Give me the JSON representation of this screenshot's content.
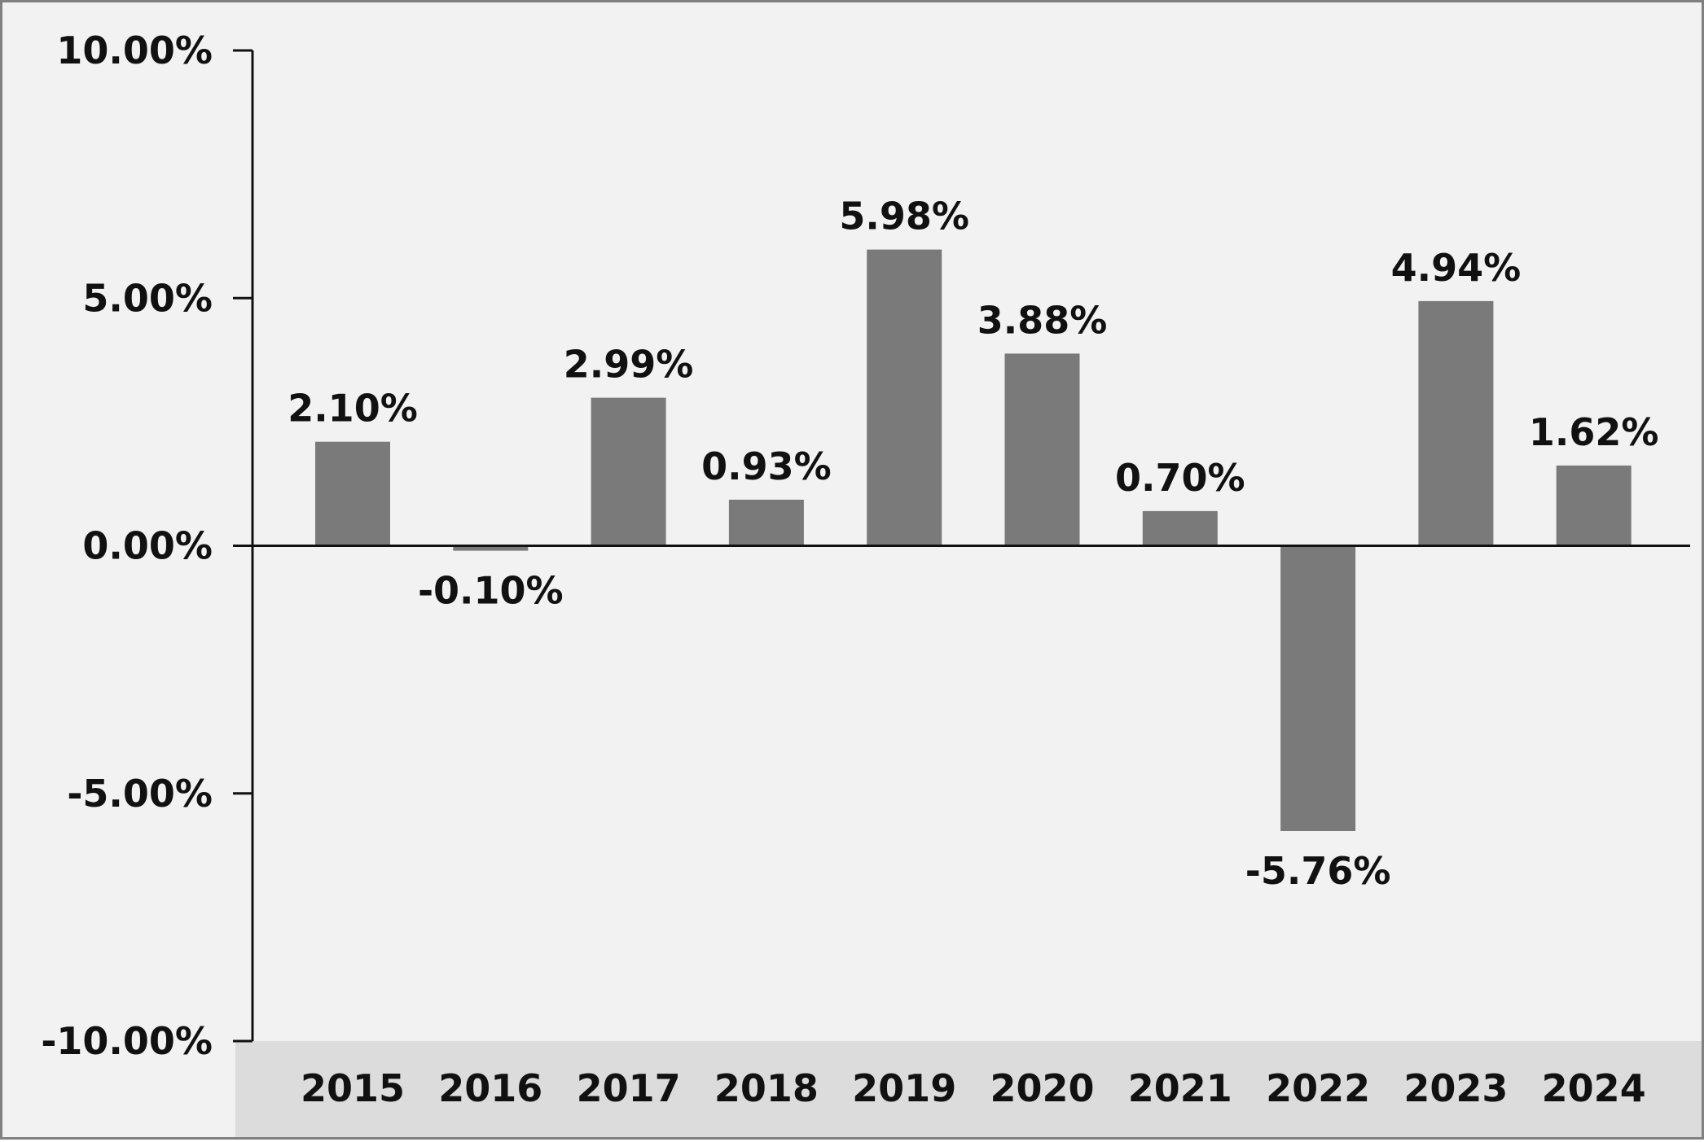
{
  "chart_data": {
    "type": "bar",
    "title": "",
    "xlabel": "",
    "ylabel": "",
    "categories": [
      "2015",
      "2016",
      "2017",
      "2018",
      "2019",
      "2020",
      "2021",
      "2022",
      "2023",
      "2024"
    ],
    "values": [
      2.1,
      -0.1,
      2.99,
      0.93,
      5.98,
      3.88,
      0.7,
      -5.76,
      4.94,
      1.62
    ],
    "data_labels": [
      "2.10%",
      "-0.10%",
      "2.99%",
      "0.93%",
      "5.98%",
      "3.88%",
      "0.70%",
      "-5.76%",
      "4.94%",
      "1.62%"
    ],
    "ylim": [
      -10,
      10
    ],
    "yticks": [
      10,
      5,
      0,
      -5,
      -10
    ],
    "ytick_labels": [
      "10.00%",
      "5.00%",
      "0.00%",
      "-5.00%",
      "-10.00%"
    ],
    "grid": false,
    "legend": "none",
    "colors": {
      "bar": "#7a7a7a",
      "background": "#f1f2f1",
      "category_band": "#dcdcdd",
      "axis": "#111111",
      "text": "#111111",
      "border": "#808080"
    }
  }
}
